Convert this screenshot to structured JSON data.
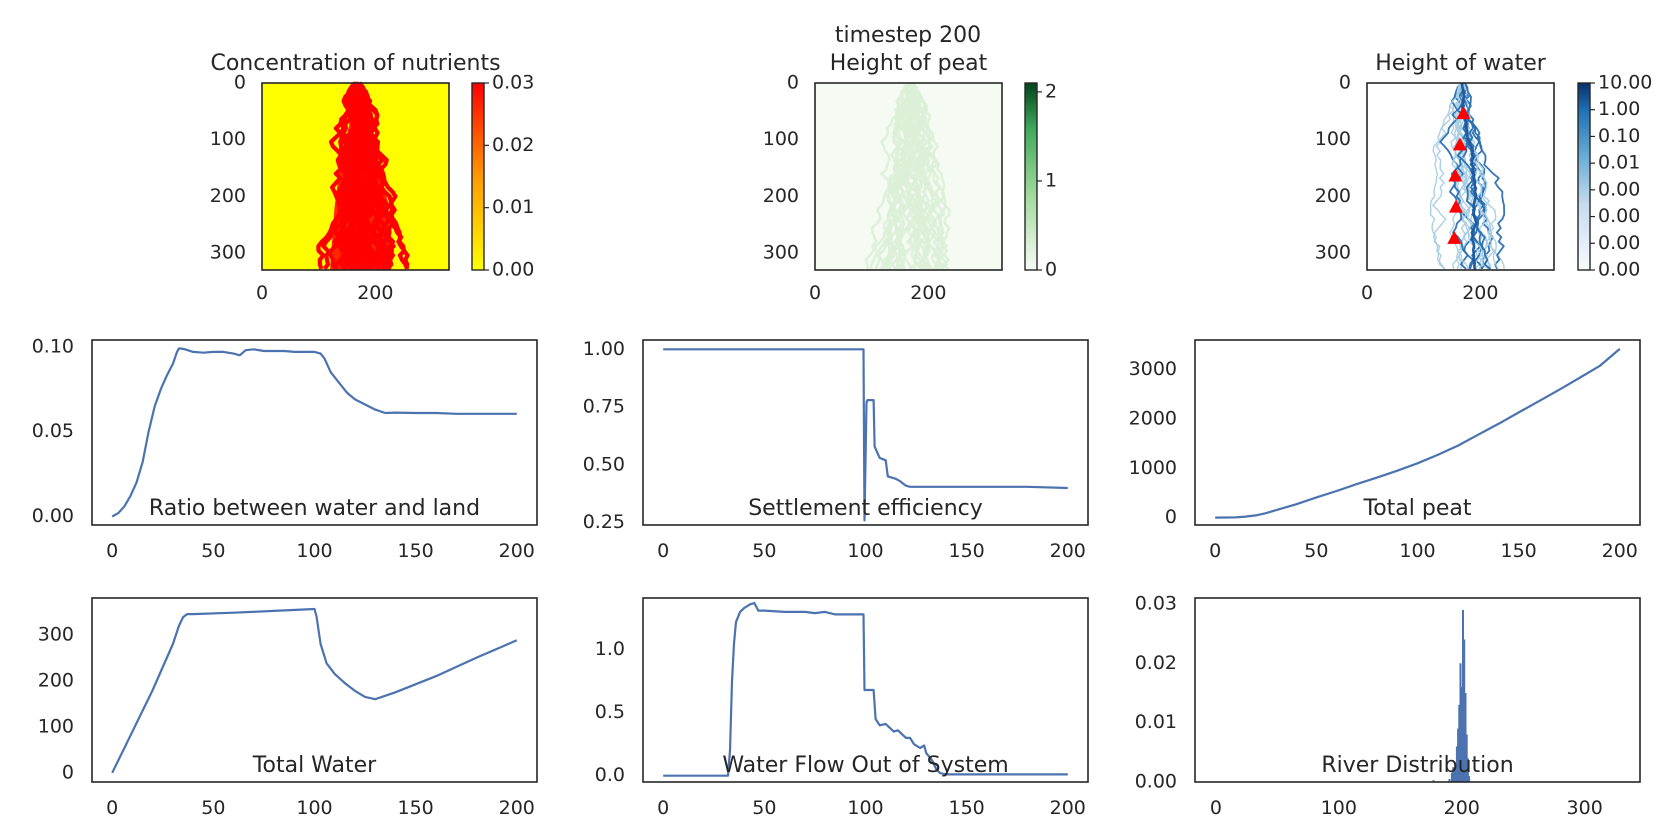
{
  "figure": {
    "suptitle": "timestep 200"
  },
  "chart_data": [
    {
      "type": "heatmap",
      "title": "Concentration of nutrients",
      "x_ticks": [
        "0",
        "200"
      ],
      "y_ticks": [
        "0",
        "100",
        "200",
        "300"
      ],
      "colorbar": {
        "ticks": [
          "0.00",
          "0.01",
          "0.02",
          "0.03"
        ],
        "range": [
          0,
          0.03
        ],
        "colormap": "autumn_r"
      },
      "colors": {
        "background": "#ffff00",
        "river": "#ff0000"
      }
    },
    {
      "type": "heatmap",
      "title": "Height of peat",
      "x_ticks": [
        "0",
        "200"
      ],
      "y_ticks": [
        "0",
        "100",
        "200",
        "300"
      ],
      "colorbar": {
        "ticks": [
          "0",
          "1",
          "2"
        ],
        "range": [
          0,
          2.1
        ],
        "colormap": "Greens"
      },
      "colors": {
        "background": "#f5fbf3",
        "river": "#dcf0d7"
      }
    },
    {
      "type": "heatmap",
      "title": "Height of water",
      "x_ticks": [
        "0",
        "200"
      ],
      "y_ticks": [
        "0",
        "100",
        "200",
        "300"
      ],
      "colorbar": {
        "ticks": [
          "10.00",
          "1.00",
          "0.10",
          "0.01",
          "0.00",
          "0.00",
          "0.00",
          "0.00"
        ],
        "scale": "log",
        "colormap": "Blues"
      },
      "markers": {
        "shape": "triangle",
        "color": "#ff0000",
        "points": [
          [
            170,
            55
          ],
          [
            164,
            110
          ],
          [
            156,
            165
          ],
          [
            157,
            220
          ],
          [
            154,
            275
          ]
        ]
      },
      "colors": {
        "river_dark": "#2a6fb0",
        "river_light": "#a6cde3"
      }
    },
    {
      "type": "line",
      "title": "Ratio between water and land",
      "x_ticks": [
        "0",
        "50",
        "100",
        "150",
        "200"
      ],
      "y_ticks": [
        "0.00",
        "0.05",
        "0.10"
      ],
      "xlim": [
        -10,
        210
      ],
      "ylim": [
        -0.005,
        0.104
      ],
      "series": [
        {
          "x": [
            0,
            3,
            6,
            9,
            12,
            15,
            18,
            21,
            24,
            27,
            30,
            32,
            33,
            34,
            36,
            40,
            45,
            50,
            55,
            60,
            63,
            66,
            70,
            75,
            80,
            85,
            90,
            95,
            100,
            103,
            105,
            108,
            112,
            116,
            120,
            125,
            130,
            135,
            140,
            150,
            160,
            170,
            180,
            190,
            200
          ],
          "y": [
            0.0,
            0.002,
            0.006,
            0.012,
            0.02,
            0.032,
            0.05,
            0.065,
            0.075,
            0.083,
            0.09,
            0.097,
            0.099,
            0.099,
            0.0985,
            0.097,
            0.0965,
            0.097,
            0.097,
            0.096,
            0.095,
            0.098,
            0.0985,
            0.0975,
            0.0975,
            0.0975,
            0.097,
            0.097,
            0.097,
            0.096,
            0.093,
            0.085,
            0.079,
            0.073,
            0.069,
            0.066,
            0.063,
            0.061,
            0.0612,
            0.061,
            0.061,
            0.0605,
            0.0605,
            0.0605,
            0.0605
          ]
        }
      ],
      "color": "#4c72b0"
    },
    {
      "type": "line",
      "title": "Settlement efficiency",
      "x_ticks": [
        "0",
        "50",
        "100",
        "150",
        "200"
      ],
      "y_ticks": [
        "0.25",
        "0.50",
        "0.75",
        "1.00"
      ],
      "xlim": [
        -10,
        210
      ],
      "ylim": [
        0.24,
        1.04
      ],
      "series": [
        {
          "x": [
            0,
            99,
            99.5,
            100.5,
            101,
            104,
            104.5,
            106,
            107,
            110,
            111,
            115,
            117,
            120,
            122,
            130,
            140,
            160,
            180,
            200
          ],
          "y": [
            1.0,
            1.0,
            0.26,
            0.77,
            0.78,
            0.78,
            0.58,
            0.55,
            0.53,
            0.52,
            0.45,
            0.44,
            0.43,
            0.41,
            0.405,
            0.405,
            0.405,
            0.405,
            0.405,
            0.4
          ]
        }
      ],
      "color": "#4c72b0"
    },
    {
      "type": "line",
      "title": "Total peat",
      "x_ticks": [
        "0",
        "50",
        "100",
        "150",
        "200"
      ],
      "y_ticks": [
        "0",
        "1000",
        "2000",
        "3000"
      ],
      "xlim": [
        -10,
        210
      ],
      "ylim": [
        -150,
        3600
      ],
      "series": [
        {
          "x": [
            0,
            10,
            15,
            20,
            25,
            30,
            40,
            50,
            60,
            70,
            80,
            90,
            100,
            110,
            120,
            130,
            140,
            150,
            160,
            170,
            180,
            190,
            200
          ],
          "y": [
            0,
            5,
            20,
            45,
            90,
            150,
            270,
            410,
            540,
            680,
            810,
            950,
            1100,
            1270,
            1460,
            1680,
            1900,
            2130,
            2360,
            2590,
            2830,
            3070,
            3420
          ]
        }
      ],
      "color": "#4c72b0"
    },
    {
      "type": "line",
      "title": "Total Water",
      "x_ticks": [
        "0",
        "50",
        "100",
        "150",
        "200"
      ],
      "y_ticks": [
        "0",
        "100",
        "200",
        "300"
      ],
      "xlim": [
        -10,
        210
      ],
      "ylim": [
        -20,
        380
      ],
      "series": [
        {
          "x": [
            0,
            10,
            20,
            30,
            33,
            35,
            37,
            40,
            60,
            80,
            100,
            101,
            103,
            106,
            110,
            115,
            120,
            125,
            130,
            140,
            160,
            180,
            200
          ],
          "y": [
            0,
            90,
            180,
            280,
            320,
            338,
            345,
            345,
            348,
            352,
            356,
            340,
            280,
            238,
            215,
            195,
            178,
            165,
            160,
            175,
            210,
            250,
            288
          ]
        }
      ],
      "color": "#4c72b0"
    },
    {
      "type": "line",
      "title": "Water Flow Out of System",
      "x_ticks": [
        "0",
        "50",
        "100",
        "150",
        "200"
      ],
      "y_ticks": [
        "0.0",
        "0.5",
        "1.0"
      ],
      "xlim": [
        -10,
        210
      ],
      "ylim": [
        -0.05,
        1.41
      ],
      "series": [
        {
          "x": [
            0,
            32,
            33,
            34,
            35,
            36,
            38,
            40,
            43,
            45,
            47,
            50,
            60,
            70,
            75,
            80,
            85,
            90,
            95,
            99,
            99.5,
            104,
            105,
            107,
            110,
            112,
            114,
            116,
            118,
            120,
            122,
            124,
            127,
            129,
            130,
            133,
            135,
            137,
            140,
            150,
            200
          ],
          "y": [
            0.0,
            0.0,
            0.2,
            0.75,
            1.05,
            1.22,
            1.3,
            1.33,
            1.36,
            1.37,
            1.31,
            1.31,
            1.3,
            1.3,
            1.29,
            1.3,
            1.28,
            1.28,
            1.28,
            1.28,
            0.68,
            0.68,
            0.45,
            0.4,
            0.41,
            0.38,
            0.35,
            0.36,
            0.33,
            0.3,
            0.3,
            0.25,
            0.22,
            0.24,
            0.18,
            0.12,
            0.05,
            0.02,
            0.01,
            0.01,
            0.01
          ]
        }
      ],
      "color": "#4c72b0"
    },
    {
      "type": "bar",
      "title": "River Distribution",
      "x_ticks": [
        "0",
        "100",
        "200",
        "300"
      ],
      "y_ticks": [
        "0.00",
        "0.01",
        "0.02",
        "0.03"
      ],
      "xlim": [
        -17,
        345
      ],
      "ylim": [
        0,
        0.031
      ],
      "bins": [
        177,
        190,
        192,
        193,
        194,
        195,
        196,
        197,
        198,
        199,
        200,
        201,
        202,
        203,
        204,
        205,
        206
      ],
      "values": [
        0.0003,
        0.0005,
        0.0015,
        0.0025,
        0.002,
        0.003,
        0.006,
        0.009,
        0.013,
        0.02,
        0.016,
        0.029,
        0.024,
        0.015,
        0.008,
        0.004,
        0.001
      ],
      "color": "#4c72b0"
    }
  ]
}
